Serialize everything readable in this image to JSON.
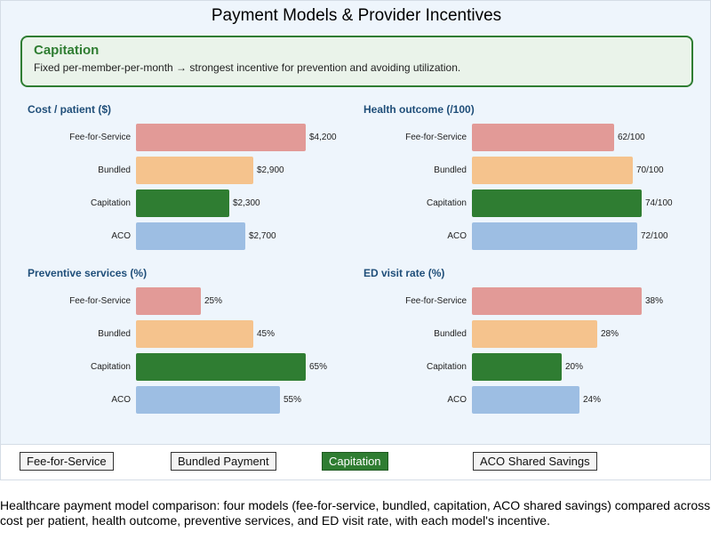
{
  "title": "Payment Models & Provider Incentives",
  "callout": {
    "heading": "Capitation",
    "text": "Fixed per-member-per-month → strongest incentive for prevention and avoiding utilization."
  },
  "colors": {
    "Fee-for-Service": "#e29a97",
    "Bundled": "#f5c38d",
    "Capitation": "#2f7d32",
    "ACO": "#9dbee3"
  },
  "model_buttons": [
    {
      "label": "Fee-for-Service",
      "active": false
    },
    {
      "label": "Bundled Payment",
      "active": false
    },
    {
      "label": "Capitation",
      "active": true
    },
    {
      "label": "ACO Shared Savings",
      "active": false
    }
  ],
  "chart_data": [
    {
      "type": "bar",
      "orientation": "horizontal",
      "title": "Cost / patient ($)",
      "categories": [
        "Fee-for-Service",
        "Bundled",
        "Capitation",
        "ACO"
      ],
      "values": [
        4200,
        2900,
        2300,
        2700
      ],
      "value_labels": [
        "$4,200",
        "$2,900",
        "$2,300",
        "$2,700"
      ],
      "xlim": [
        0,
        4200
      ]
    },
    {
      "type": "bar",
      "orientation": "horizontal",
      "title": "Health outcome (/100)",
      "categories": [
        "Fee-for-Service",
        "Bundled",
        "Capitation",
        "ACO"
      ],
      "values": [
        62,
        70,
        74,
        72
      ],
      "value_labels": [
        "62/100",
        "70/100",
        "74/100",
        "72/100"
      ],
      "xlim": [
        0,
        74
      ]
    },
    {
      "type": "bar",
      "orientation": "horizontal",
      "title": "Preventive services (%)",
      "categories": [
        "Fee-for-Service",
        "Bundled",
        "Capitation",
        "ACO"
      ],
      "values": [
        25,
        45,
        65,
        55
      ],
      "value_labels": [
        "25%",
        "45%",
        "65%",
        "55%"
      ],
      "xlim": [
        0,
        65
      ]
    },
    {
      "type": "bar",
      "orientation": "horizontal",
      "title": "ED visit rate (%)",
      "categories": [
        "Fee-for-Service",
        "Bundled",
        "Capitation",
        "ACO"
      ],
      "values": [
        38,
        28,
        20,
        24
      ],
      "value_labels": [
        "38%",
        "28%",
        "20%",
        "24%"
      ],
      "xlim": [
        0,
        38
      ]
    }
  ],
  "caption": "Healthcare payment model comparison: four models (fee-for-service, bundled, capitation, ACO shared savings) compared across cost per patient, health outcome, preventive services, and ED visit rate, with each model's incentive."
}
